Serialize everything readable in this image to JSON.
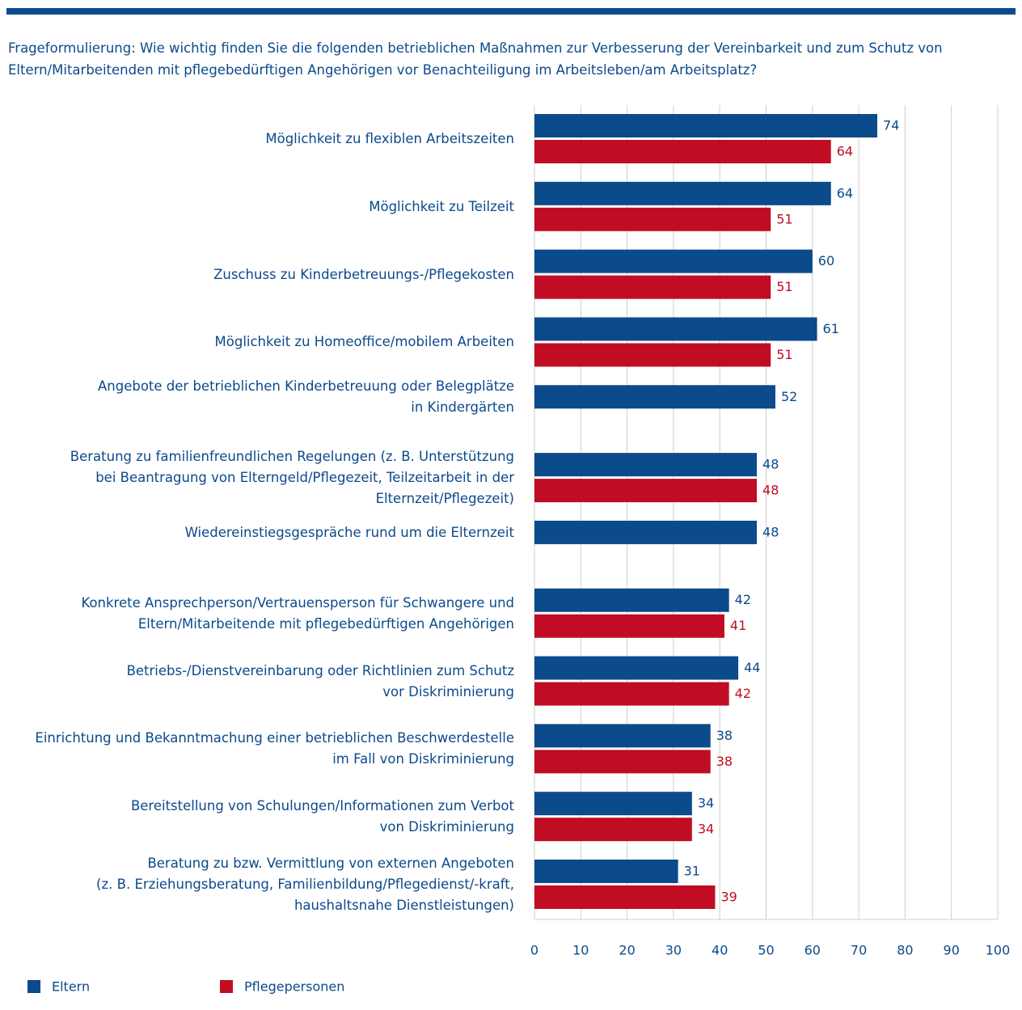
{
  "chart_data": {
    "type": "barh",
    "question": "Frageformulierung: Wie wichtig finden Sie die folgenden betrieblichen Maßnahmen zur Verbesserung der Vereinbarkeit und zum Schutz von\nEltern/Mitarbeitenden mit pflegebedürftigen Angehörigen vor Benachteiligung im Arbeitsleben/am Arbeitsplatz?",
    "categories": [
      "Möglichkeit zu flexiblen Arbeitszeiten",
      "Möglichkeit zu Teilzeit",
      "Zuschuss zu Kinderbetreuungs-/Pflegekosten",
      "Möglichkeit zu Homeoffice/mobilem Arbeiten",
      "Angebote der betrieblichen Kinderbetreuung oder Belegplätze\nin Kindergärten",
      "Beratung zu familienfreundlichen Regelungen (z. B. Unterstützung\nbei Beantragung von Elterngeld/Pflegezeit, Teilzeitarbeit in der\nElternzeit/Pflegezeit)",
      "Wiedereinstiegsgespräche rund um die Elternzeit",
      "Konkrete Ansprechperson/Vertrauensperson für Schwangere und\nEltern/Mitarbeitende mit pflegebedürftigen Angehörigen",
      "Betriebs-/Dienstvereinbarung oder Richtlinien zum Schutz\nvor Diskriminierung",
      "Einrichtung und Bekanntmachung einer betrieblichen Beschwerdestelle\nim Fall von Diskriminierung",
      "Bereitstellung von Schulungen/Informationen zum Verbot\nvon Diskriminierung",
      "Beratung zu bzw. Vermittlung von externen Angeboten\n(z. B. Erziehungsberatung, Familienbildung/Pflegedienst/-kraft,\nhaushaltsnahe Dienstleistungen)"
    ],
    "series": [
      {
        "name": "Eltern",
        "color": "#0b4a8b",
        "values": [
          74,
          64,
          60,
          61,
          52,
          48,
          48,
          42,
          44,
          38,
          34,
          31
        ]
      },
      {
        "name": "Pflegepersonen",
        "color": "#c00d23",
        "values": [
          64,
          51,
          51,
          51,
          null,
          48,
          null,
          41,
          42,
          38,
          34,
          39
        ]
      }
    ],
    "xlim": [
      0,
      100
    ],
    "xticks": [
      0,
      10,
      20,
      30,
      40,
      50,
      60,
      70,
      80,
      90,
      100
    ],
    "grid": true
  }
}
